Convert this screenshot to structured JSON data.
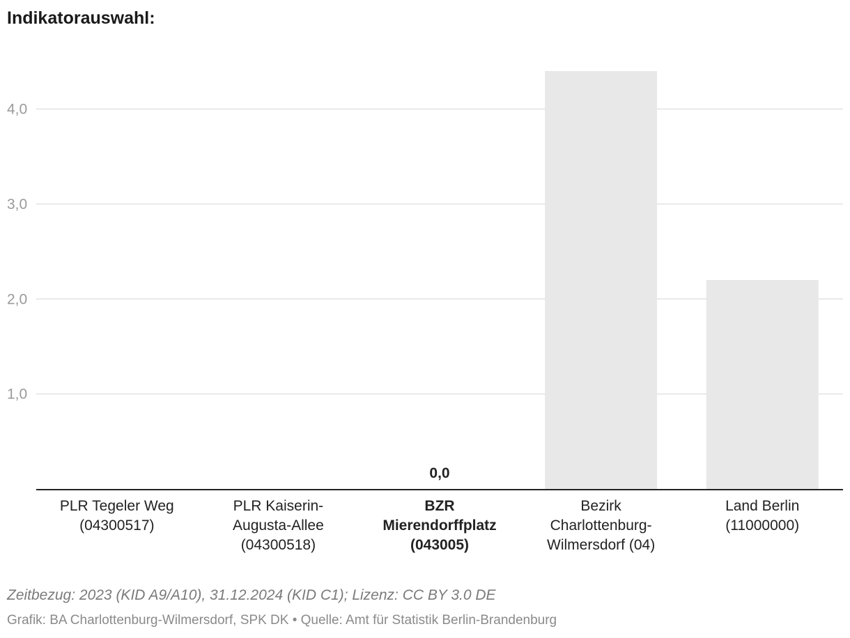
{
  "title": "Indikatorauswahl:",
  "footer": {
    "time_ref": "Zeitbezug: 2023 (KID A9/A10), 31.12.2024 (KID C1); Lizenz: CC BY 3.0 DE",
    "source": "Grafik: BA Charlottenburg-Wilmersdorf, SPK DK • Quelle: Amt für Statistik Berlin-Brandenburg"
  },
  "colors": {
    "bar": "#e8e8e8",
    "grid": "#e2e2e2",
    "axis": "#222222"
  },
  "chart_data": {
    "type": "bar",
    "categories": [
      [
        "PLR Tegeler Weg",
        "(04300517)"
      ],
      [
        "PLR Kaiserin-",
        "Augusta-Allee",
        "(04300518)"
      ],
      [
        "BZR",
        "Mierendorffplatz",
        "(043005)"
      ],
      [
        "Bezirk",
        "Charlottenburg-",
        "Wilmersdorf (04)"
      ],
      [
        "Land Berlin",
        "(11000000)"
      ]
    ],
    "highlight_index": 2,
    "values": [
      null,
      null,
      0.0,
      4.4,
      2.2
    ],
    "data_labels": [
      null,
      null,
      "0,0",
      null,
      null
    ],
    "yticks": [
      1.0,
      2.0,
      3.0,
      4.0
    ],
    "ytick_labels": [
      "1,0",
      "2,0",
      "3,0",
      "4,0"
    ],
    "ylim": [
      0,
      4.4
    ],
    "grid": true,
    "legend": "none",
    "xlabel": "",
    "ylabel": ""
  }
}
